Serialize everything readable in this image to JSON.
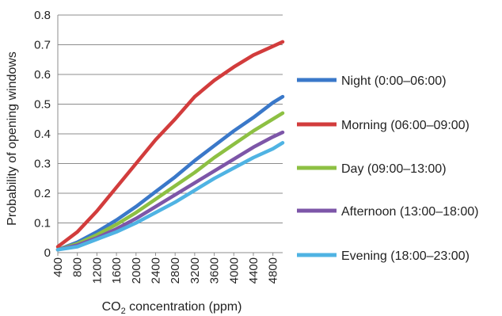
{
  "chart_data": {
    "type": "line",
    "xlabel_main": "CO",
    "xlabel_sub": "2",
    "xlabel_rest": " concentration (ppm)",
    "ylabel": "Probability of opening windows",
    "xlim": [
      400,
      5000
    ],
    "ylim": [
      0,
      0.8
    ],
    "x_ticks": [
      400,
      800,
      1200,
      1600,
      2000,
      2400,
      2800,
      3200,
      3600,
      4000,
      4400,
      4800
    ],
    "x_tick_labels": [
      "400",
      "800",
      "1200",
      "1600",
      "2000",
      "2400",
      "2800",
      "3200",
      "3600",
      "4000",
      "4400",
      "4800"
    ],
    "y_ticks": [
      0,
      0.1,
      0.2,
      0.3,
      0.4,
      0.5,
      0.6,
      0.7,
      0.8
    ],
    "y_tick_labels": [
      "0",
      "0.1",
      "0.2",
      "0.3",
      "0.4",
      "0.5",
      "0.6",
      "0.7",
      "0.8"
    ],
    "grid": "horizontal",
    "legend_position": "right",
    "x": [
      400,
      800,
      1200,
      1600,
      2000,
      2400,
      2800,
      3200,
      3600,
      4000,
      4400,
      4800,
      5000
    ],
    "series": [
      {
        "name": "Night (0:00–06:00)",
        "color": "#3a78c9",
        "values": [
          0.01,
          0.035,
          0.07,
          0.11,
          0.155,
          0.205,
          0.255,
          0.31,
          0.36,
          0.41,
          0.455,
          0.505,
          0.525
        ]
      },
      {
        "name": "Morning (06:00–09:00)",
        "color": "#d23c3c",
        "values": [
          0.02,
          0.07,
          0.14,
          0.22,
          0.3,
          0.38,
          0.45,
          0.525,
          0.58,
          0.625,
          0.665,
          0.695,
          0.71
        ]
      },
      {
        "name": "Day (09:00–13:00)",
        "color": "#8dc043",
        "values": [
          0.01,
          0.03,
          0.06,
          0.095,
          0.135,
          0.18,
          0.225,
          0.27,
          0.32,
          0.365,
          0.41,
          0.45,
          0.47
        ]
      },
      {
        "name": "Afternoon (13:00–18:00)",
        "color": "#7d56a8",
        "values": [
          0.01,
          0.025,
          0.05,
          0.08,
          0.115,
          0.155,
          0.195,
          0.235,
          0.275,
          0.315,
          0.355,
          0.39,
          0.405
        ]
      },
      {
        "name": "Evening (18:00–23:00)",
        "color": "#4fb3e3",
        "values": [
          0.01,
          0.02,
          0.045,
          0.07,
          0.1,
          0.135,
          0.17,
          0.21,
          0.25,
          0.285,
          0.32,
          0.35,
          0.37
        ]
      }
    ]
  }
}
